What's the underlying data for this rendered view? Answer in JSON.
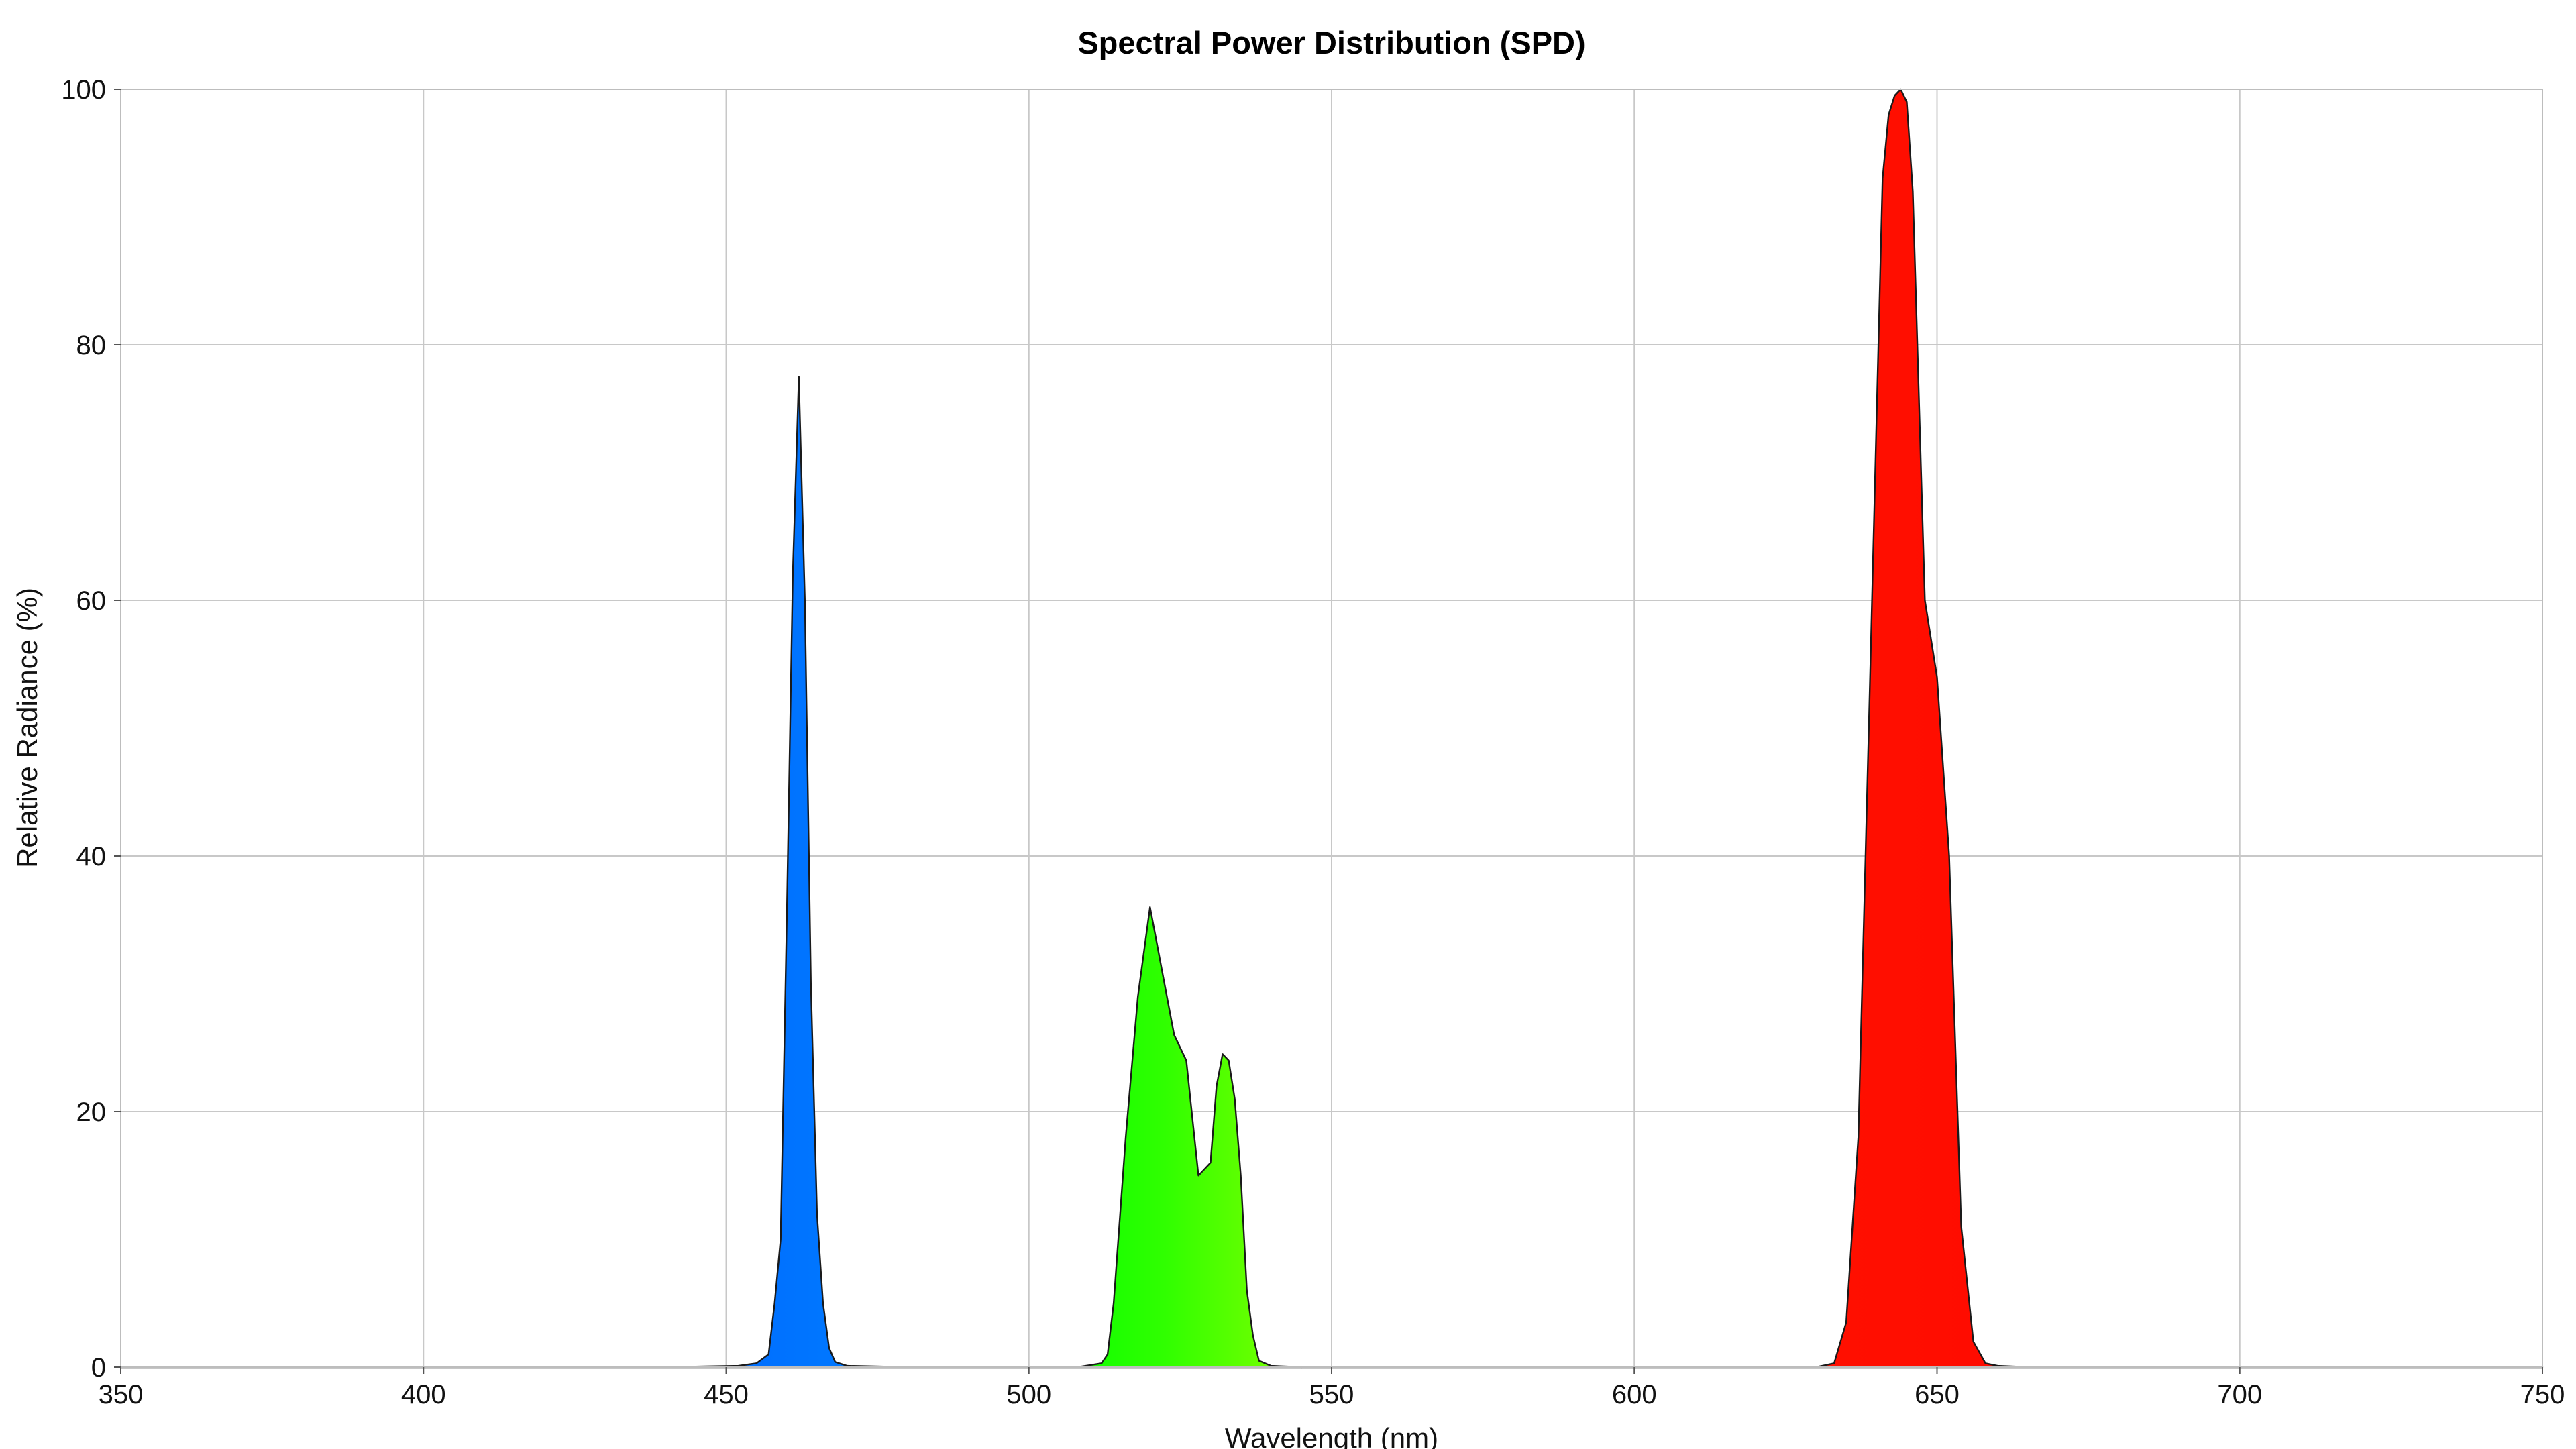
{
  "chart_data": {
    "type": "area",
    "title": "Spectral Power Distribution (SPD)",
    "xlabel": "Wavelength (nm)",
    "ylabel": "Relative Radiance (%)",
    "xlim": [
      350,
      750
    ],
    "ylim": [
      0,
      100
    ],
    "xticks": [
      350,
      400,
      450,
      500,
      550,
      600,
      650,
      700,
      750
    ],
    "yticks": [
      0,
      20,
      40,
      60,
      80,
      100
    ],
    "grid": true,
    "colors": {
      "blue": "#0055ff",
      "green": "#22ff00",
      "red": "#ff0000",
      "outline": "#1a1a1a"
    },
    "series": [
      {
        "color": "blue",
        "x": [
          350,
          440,
          452,
          455,
          457,
          458,
          459,
          460,
          461,
          462,
          463,
          464,
          465,
          466,
          467,
          468,
          470,
          480,
          500
        ],
        "y": [
          0,
          0,
          0.1,
          0.3,
          1,
          5,
          10,
          35,
          62,
          77.5,
          60,
          30,
          12,
          5,
          1.5,
          0.4,
          0.1,
          0,
          0
        ]
      },
      {
        "color": "green",
        "x": [
          500,
          508,
          512,
          513,
          514,
          516,
          518,
          520,
          522,
          524,
          526,
          528,
          530,
          531,
          532,
          533,
          534,
          535,
          536,
          537,
          538,
          540,
          545
        ],
        "y": [
          0,
          0,
          0.3,
          1,
          5,
          18,
          29,
          36,
          31,
          26,
          24,
          15,
          16,
          22,
          24.5,
          24,
          21,
          15,
          6,
          2.5,
          0.5,
          0.1,
          0
        ]
      },
      {
        "color": "red",
        "x": [
          545,
          630,
          633,
          635,
          637,
          639,
          641,
          642,
          643,
          644,
          645,
          646,
          648,
          650,
          652,
          654,
          656,
          658,
          660,
          665,
          750
        ],
        "y": [
          0,
          0,
          0.3,
          3.5,
          18,
          55,
          93,
          98,
          99.5,
          100,
          99,
          92,
          60,
          54,
          40,
          11,
          2,
          0.3,
          0.1,
          0,
          0
        ]
      }
    ]
  }
}
